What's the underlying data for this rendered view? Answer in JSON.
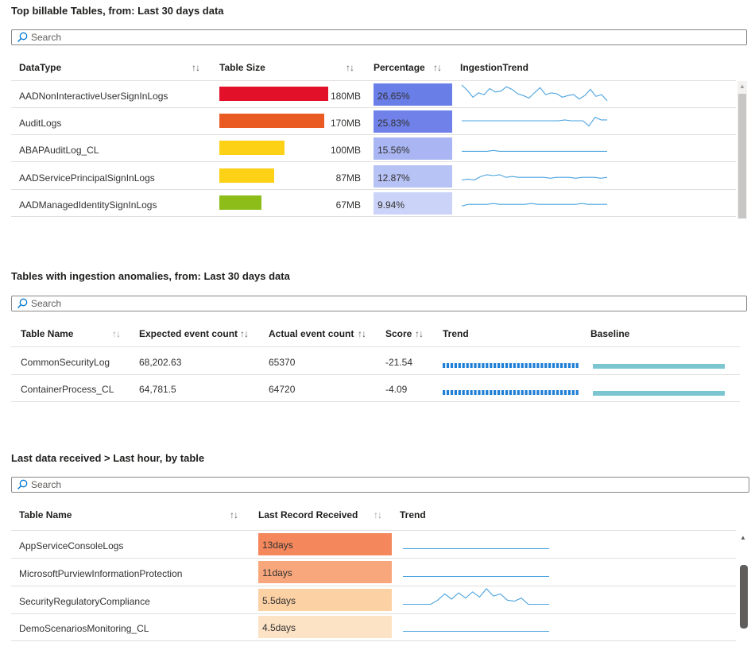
{
  "billable": {
    "title": "Top billable Tables, from: Last 30 days data",
    "search_placeholder": "Search",
    "headers": {
      "datatype": "DataType",
      "size": "Table Size",
      "percentage": "Percentage",
      "trend": "IngestionTrend"
    },
    "sort_glyph": "↑↓",
    "rows": [
      {
        "name": "AADNonInteractiveUserSignInLogs",
        "size": "180MB",
        "percentage": "26.65%",
        "bar_fraction": 1.0,
        "bar_color": "#e3102a",
        "pct_color": "#6a7ee8"
      },
      {
        "name": "AuditLogs",
        "size": "170MB",
        "percentage": "25.83%",
        "bar_fraction": 0.96,
        "bar_color": "#ea5b23",
        "pct_color": "#7082ea"
      },
      {
        "name": "ABAPAuditLog_CL",
        "size": "100MB",
        "percentage": "15.56%",
        "bar_fraction": 0.6,
        "bar_color": "#fcd116",
        "pct_color": "#a9b6f3"
      },
      {
        "name": "AADServicePrincipalSignInLogs",
        "size": "87MB",
        "percentage": "12.87%",
        "bar_fraction": 0.5,
        "bar_color": "#fcd116",
        "pct_color": "#b7c2f5"
      },
      {
        "name": "AADManagedIdentitySignInLogs",
        "size": "67MB",
        "percentage": "9.94%",
        "bar_fraction": 0.39,
        "bar_color": "#8cbd18",
        "pct_color": "#cbd3f8"
      }
    ]
  },
  "anomalies": {
    "title": "Tables with ingestion anomalies, from: Last 30 days data",
    "search_placeholder": "Search",
    "headers": {
      "table": "Table Name",
      "expected": "Expected event count",
      "actual": "Actual event count",
      "score": "Score",
      "trend": "Trend",
      "baseline": "Baseline"
    },
    "sort_glyph": "↑↓",
    "rows": [
      {
        "name": "CommonSecurityLog",
        "expected": "68,202.63",
        "actual": "65370",
        "score": "-21.54"
      },
      {
        "name": "ContainerProcess_CL",
        "expected": "64,781.5",
        "actual": "64720",
        "score": "-4.09"
      }
    ]
  },
  "lastdata": {
    "title": "Last data received > Last hour, by table",
    "search_placeholder": "Search",
    "headers": {
      "table": "Table Name",
      "last": "Last Record Received",
      "trend": "Trend"
    },
    "sort_glyph": "↑↓",
    "rows": [
      {
        "name": "AppServiceConsoleLogs",
        "last": "13days",
        "color": "#f4875c"
      },
      {
        "name": "MicrosoftPurviewInformationProtection",
        "last": "11days",
        "color": "#f8a77c"
      },
      {
        "name": "SecurityRegulatoryCompliance",
        "last": "5.5days",
        "color": "#fcd1a4"
      },
      {
        "name": "DemoScenariosMonitoring_CL",
        "last": "4.5days",
        "color": "#fde3c5"
      }
    ]
  },
  "colors": {
    "sparkline": "#4aa3df",
    "trend_bars": "#1f7fd6",
    "baseline": "#7cc6d2"
  }
}
